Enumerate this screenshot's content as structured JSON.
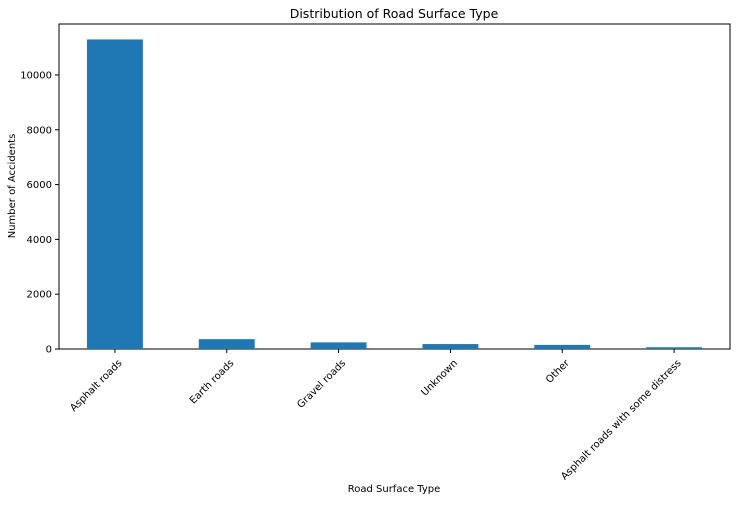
{
  "chart_data": {
    "type": "bar",
    "title": "Distribution of Road Surface Type",
    "xlabel": "Road Surface Type",
    "ylabel": "Number of Accidents",
    "categories": [
      "Asphalt roads",
      "Earth roads",
      "Gravel roads",
      "Unknown",
      "Other",
      "Asphalt roads with some distress"
    ],
    "values": [
      11296,
      358,
      242,
      180,
      150,
      64
    ],
    "ylim": [
      0,
      11860
    ],
    "yticks": [
      0,
      2000,
      4000,
      6000,
      8000,
      10000
    ],
    "ytick_labels": [
      "0",
      "2000",
      "4000",
      "6000",
      "8000",
      "10000"
    ],
    "grid": false,
    "legend": "none",
    "bar_color": "#1f77b4",
    "x_tick_rotation_deg": 45
  }
}
